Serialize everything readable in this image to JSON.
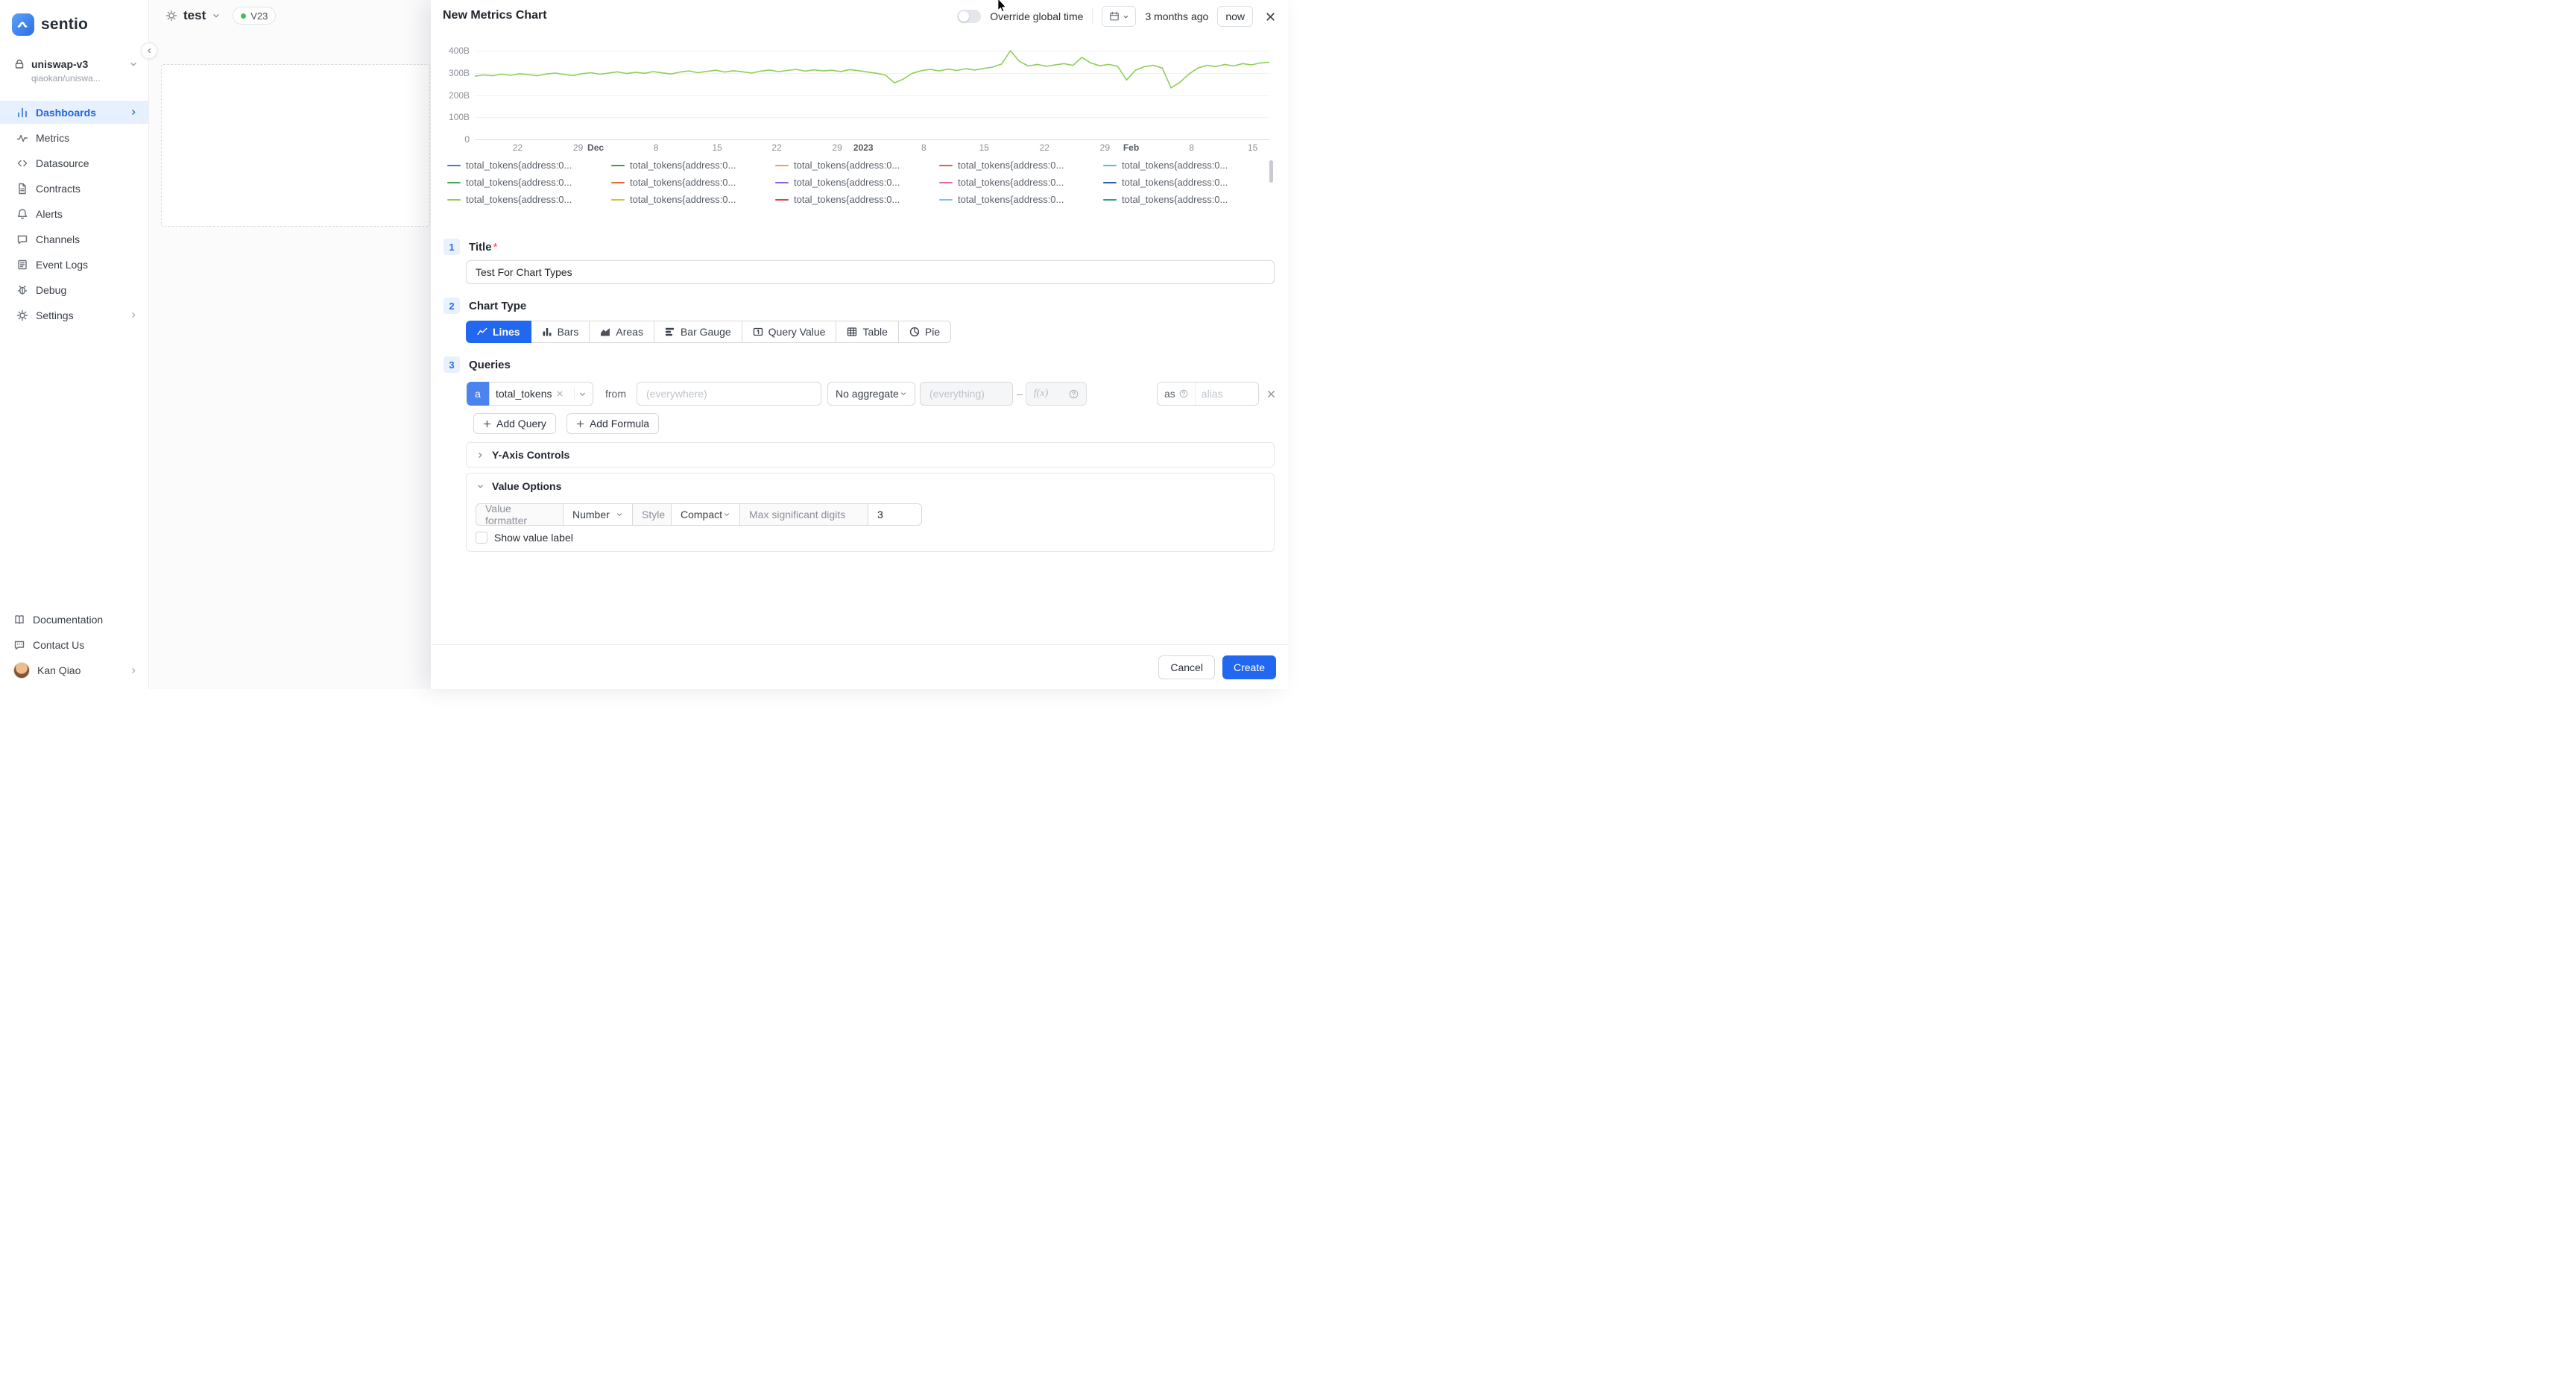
{
  "ui": {
    "sidebar": {
      "brand": "sentio",
      "project_name": "uniswap-v3",
      "project_subtitle": "qiaokan/uniswa...",
      "items": [
        {
          "label": "Dashboards"
        },
        {
          "label": "Metrics"
        },
        {
          "label": "Datasource"
        },
        {
          "label": "Contracts"
        },
        {
          "label": "Alerts"
        },
        {
          "label": "Channels"
        },
        {
          "label": "Event Logs"
        },
        {
          "label": "Debug"
        },
        {
          "label": "Settings"
        }
      ],
      "footer_items": [
        {
          "label": "Documentation"
        },
        {
          "label": "Contact Us"
        }
      ],
      "user_name": "Kan Qiao"
    },
    "dashboard": {
      "title": "test",
      "version_label": "V23"
    },
    "drawer": {
      "title": "New Metrics Chart",
      "override_global_time_label": "Override global time",
      "time_range_start": "3 months ago",
      "time_range_end": "now",
      "step1_num": "1",
      "step1_label": "Title",
      "title_value": "Test For Chart Types",
      "step2_num": "2",
      "step2_label": "Chart Type",
      "chart_types": [
        "Lines",
        "Bars",
        "Areas",
        "Bar Gauge",
        "Query Value",
        "Table",
        "Pie"
      ],
      "selected_chart_type": "Lines",
      "step3_num": "3",
      "step3_label": "Queries",
      "query": {
        "letter": "a",
        "metric": "total_tokens",
        "from_label": "from",
        "where_placeholder": "(everywhere)",
        "aggregate_label": "No aggregate",
        "group_placeholder": "(everything)",
        "fx_label": "f(x)",
        "as_label": "as",
        "alias_placeholder": "alias"
      },
      "add_query_label": "Add Query",
      "add_formula_label": "Add Formula",
      "yaxis_controls_label": "Y-Axis Controls",
      "value_options_label": "Value Options",
      "value_formatter_label": "Value formatter",
      "value_formatter_value": "Number",
      "style_label": "Style",
      "style_value": "Compact",
      "max_digits_label": "Max significant digits",
      "max_digits_value": "3",
      "show_value_label": "Show value label",
      "cancel_label": "Cancel",
      "create_label": "Create"
    }
  },
  "chart_data": {
    "type": "line",
    "unit": "B",
    "ylim": [
      0,
      400
    ],
    "grid": true,
    "legend_position": "bottom",
    "yticks": [
      {
        "v": 400,
        "label": "400B"
      },
      {
        "v": 300,
        "label": "300B"
      },
      {
        "v": 200,
        "label": "200B"
      },
      {
        "v": 100,
        "label": "100B"
      },
      {
        "v": 0,
        "label": "0"
      }
    ],
    "xticks": [
      {
        "pos": 0.054,
        "label": "22",
        "bold": false
      },
      {
        "pos": 0.13,
        "label": "29",
        "bold": false
      },
      {
        "pos": 0.152,
        "label": "Dec",
        "bold": true
      },
      {
        "pos": 0.228,
        "label": "8",
        "bold": false
      },
      {
        "pos": 0.305,
        "label": "15",
        "bold": false
      },
      {
        "pos": 0.38,
        "label": "22",
        "bold": false
      },
      {
        "pos": 0.456,
        "label": "29",
        "bold": false
      },
      {
        "pos": 0.489,
        "label": "2023",
        "bold": true
      },
      {
        "pos": 0.565,
        "label": "8",
        "bold": false
      },
      {
        "pos": 0.641,
        "label": "15",
        "bold": false
      },
      {
        "pos": 0.717,
        "label": "22",
        "bold": false
      },
      {
        "pos": 0.793,
        "label": "29",
        "bold": false
      },
      {
        "pos": 0.826,
        "label": "Feb",
        "bold": true
      },
      {
        "pos": 0.902,
        "label": "8",
        "bold": false
      },
      {
        "pos": 0.979,
        "label": "15",
        "bold": false
      }
    ],
    "legend": {
      "label": "total_tokens{address:0...",
      "colors": [
        "#4878d0",
        "#3f9e4d",
        "#f2a33c",
        "#e05c49",
        "#5ab6e8",
        "#48a860",
        "#e06a3a",
        "#8a63d2",
        "#e06aa8",
        "#2d5bb8",
        "#8fce5a",
        "#d4c23a",
        "#d9453c",
        "#74c7e8",
        "#35a07a"
      ]
    },
    "series": [
      {
        "name": "total_tokens",
        "color": "#8fce5a",
        "values_b": [
          285,
          291,
          287,
          294,
          289,
          296,
          292,
          287,
          295,
          299,
          293,
          288,
          296,
          301,
          294,
          299,
          305,
          297,
          303,
          298,
          306,
          300,
          295,
          304,
          309,
          301,
          307,
          312,
          304,
          310,
          305,
          299,
          308,
          313,
          306,
          311,
          316,
          308,
          314,
          309,
          312,
          306,
          315,
          310,
          304,
          298,
          290,
          255,
          272,
          298,
          310,
          316,
          309,
          317,
          311,
          319,
          313,
          320,
          326,
          340,
          400,
          352,
          331,
          338,
          330,
          336,
          342,
          334,
          370,
          345,
          332,
          338,
          330,
          268,
          312,
          328,
          334,
          322,
          232,
          258,
          295,
          322,
          334,
          328,
          338,
          331,
          342,
          336,
          345,
          348
        ]
      }
    ]
  }
}
